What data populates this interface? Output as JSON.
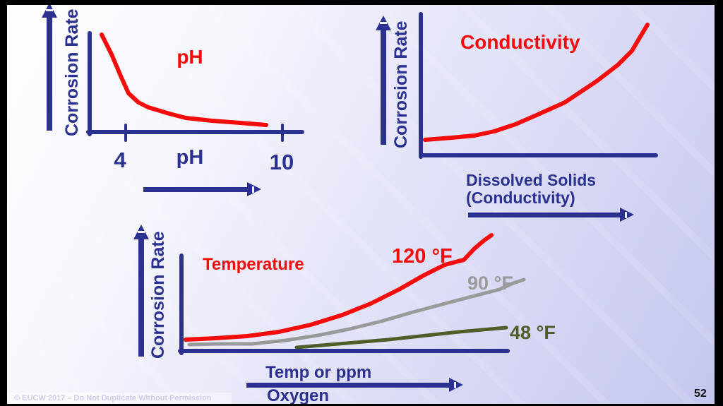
{
  "slide": {
    "page_number": "52",
    "watermark": "© EUCW 2017 – Do Not Duplicate Without Permission",
    "colors": {
      "navy": "#2b3191",
      "red": "#f60a0a",
      "gray": "#9a9a9a",
      "olive": "#4e5e28",
      "background_start": "#ffffff",
      "background_end": "#c4c7ee",
      "frame": "#000000"
    }
  },
  "chart_data": [
    {
      "id": "ph",
      "type": "line",
      "title": "pH",
      "xlabel": "pH",
      "ylabel": "Corrosion Rate",
      "x_ticks": [
        "4",
        "10"
      ],
      "axes_note": "qualitative axes; corrosion rate falls steeply below pH 4 then flattens toward pH 10; points are local drawing coords",
      "series": [
        {
          "name": "corrosion-vs-ph",
          "label": "",
          "color": "#f60a0a",
          "width": 6,
          "points": [
            [
              31,
              11
            ],
            [
              45,
              39
            ],
            [
              59,
              72
            ],
            [
              69,
              94
            ],
            [
              83,
              107
            ],
            [
              97,
              114
            ],
            [
              127,
              123
            ],
            [
              150,
              129
            ],
            [
              187,
              133
            ],
            [
              227,
              136
            ],
            [
              264,
              139
            ]
          ]
        }
      ]
    },
    {
      "id": "conductivity",
      "type": "line",
      "title": "Conductivity",
      "xlabel": "Dissolved Solids (Conductivity)",
      "xlabel_line1": "Dissolved Solids",
      "xlabel_line2": "(Conductivity)",
      "ylabel": "Corrosion Rate",
      "x_ticks": [],
      "axes_note": "qualitative axes; corrosion rate rises slowly then exponentially with dissolved solids / conductivity; points are local drawing coords",
      "series": [
        {
          "name": "corrosion-vs-conductivity",
          "label": "",
          "color": "#f60a0a",
          "width": 6,
          "points": [
            [
              14,
              185
            ],
            [
              52,
              182
            ],
            [
              84,
              179
            ],
            [
              112,
              173
            ],
            [
              142,
              163
            ],
            [
              172,
              150
            ],
            [
              212,
              132
            ],
            [
              257,
              102
            ],
            [
              287,
              79
            ],
            [
              307,
              59
            ],
            [
              317,
              42
            ],
            [
              329,
              22
            ]
          ]
        }
      ]
    },
    {
      "id": "temperature",
      "type": "line",
      "title": "Temperature",
      "xlabel": "Temp or ppm Oxygen",
      "xlabel_line1": "Temp or ppm",
      "xlabel_line2": "Oxygen",
      "ylabel": "Corrosion Rate",
      "x_ticks": [],
      "axes_note": "qualitative axes; corrosion rate vs temp/ppm oxygen at three water temperatures; higher temperature gives steeper rise; points are local drawing coords",
      "series": [
        {
          "name": "curve-120f",
          "label": "120 °F",
          "color": "#f60a0a",
          "width": 6,
          "points": [
            [
              15,
              158
            ],
            [
              57,
              156
            ],
            [
              102,
              153
            ],
            [
              147,
              147
            ],
            [
              192,
              137
            ],
            [
              237,
              123
            ],
            [
              277,
              107
            ],
            [
              317,
              87
            ],
            [
              352,
              67
            ],
            [
              382,
              52
            ],
            [
              409,
              45
            ],
            [
              424,
              29
            ],
            [
              437,
              18
            ],
            [
              448,
              10
            ]
          ]
        },
        {
          "name": "curve-90f",
          "label": "90 °F",
          "color": "#9a9a9a",
          "width": 5,
          "points": [
            [
              20,
              165
            ],
            [
              62,
              164
            ],
            [
              109,
              164
            ],
            [
              157,
              159
            ],
            [
              202,
              152
            ],
            [
              247,
              143
            ],
            [
              292,
              132
            ],
            [
              337,
              119
            ],
            [
              382,
              107
            ],
            [
              424,
              96
            ],
            [
              459,
              87
            ],
            [
              479,
              78
            ],
            [
              494,
              73
            ]
          ]
        },
        {
          "name": "curve-48f",
          "label": "48 °F",
          "color": "#4e5e28",
          "width": 5,
          "points": [
            [
              172,
              169
            ],
            [
              302,
              158
            ],
            [
              402,
              147
            ],
            [
              469,
              141
            ]
          ]
        }
      ]
    }
  ]
}
